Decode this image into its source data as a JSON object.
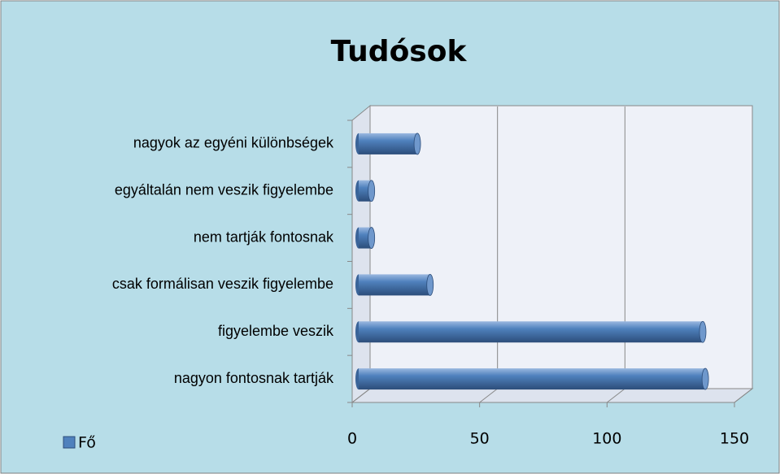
{
  "chart_data": {
    "type": "bar",
    "orientation": "horizontal",
    "title": "Tudósok",
    "categories": [
      "nagyon fontosnak tartják",
      "figyelembe veszik",
      "csak formálisan veszik figyelembe",
      "nem tartják fontosnak",
      "egyáltalán nem veszik figyelembe",
      "nagyok az egyéni különbségek"
    ],
    "series": [
      {
        "name": "Fő",
        "color": "#4f81bd",
        "values": [
          136,
          135,
          28,
          5,
          5,
          23
        ]
      }
    ],
    "xlim": [
      0,
      150
    ],
    "xticks": [
      0,
      50,
      100,
      150
    ],
    "grid": true,
    "legend": "bottom-left"
  }
}
